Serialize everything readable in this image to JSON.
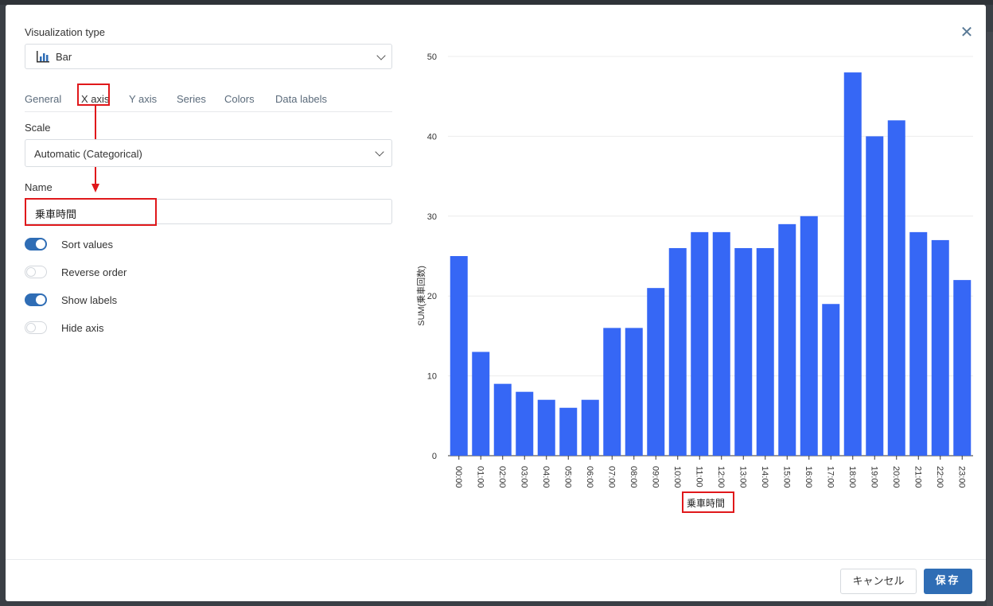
{
  "dialog": {
    "viz_type_label": "Visualization type",
    "viz_type_value": "Bar",
    "tabs": [
      "General",
      "X axis",
      "Y axis",
      "Series",
      "Colors",
      "Data labels"
    ],
    "scale_label": "Scale",
    "scale_value": "Automatic (Categorical)",
    "name_label": "Name",
    "name_value": "乗車時間",
    "toggles": [
      {
        "label": "Sort values",
        "on": true
      },
      {
        "label": "Reverse order",
        "on": false
      },
      {
        "label": "Show labels",
        "on": true
      },
      {
        "label": "Hide axis",
        "on": false
      }
    ],
    "close_icon": "✕",
    "cancel_label": "キャンセル",
    "save_label": "保存"
  },
  "colors": {
    "bar": "#3667f5",
    "highlight": "#e0181b",
    "primary": "#2f6db5"
  },
  "chart_data": {
    "type": "bar",
    "categories": [
      "00:00",
      "01:00",
      "02:00",
      "03:00",
      "04:00",
      "05:00",
      "06:00",
      "07:00",
      "08:00",
      "09:00",
      "10:00",
      "11:00",
      "12:00",
      "13:00",
      "14:00",
      "15:00",
      "16:00",
      "17:00",
      "18:00",
      "19:00",
      "20:00",
      "21:00",
      "22:00",
      "23:00"
    ],
    "values": [
      25,
      13,
      9,
      8,
      7,
      6,
      7,
      16,
      16,
      21,
      26,
      28,
      28,
      26,
      26,
      29,
      30,
      19,
      48,
      40,
      42,
      28,
      27,
      22
    ],
    "xlabel": "乗車時間",
    "ylabel": "SUM(乗車回数)",
    "ylim": [
      0,
      50
    ],
    "yticks": [
      0,
      10,
      20,
      30,
      40,
      50
    ],
    "grid": true
  }
}
